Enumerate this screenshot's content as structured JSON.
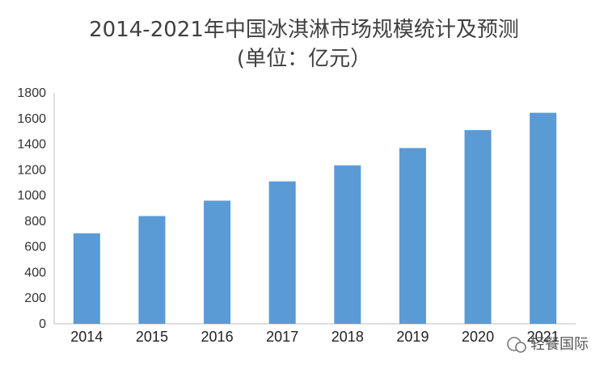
{
  "chart_data": {
    "type": "bar",
    "title_line1": "2014-2021年中国冰淇淋市场规模统计及预测",
    "title_line2": "(单位：亿元）",
    "categories": [
      "2014",
      "2015",
      "2016",
      "2017",
      "2018",
      "2019",
      "2020",
      "2021"
    ],
    "values": [
      705,
      840,
      960,
      1110,
      1235,
      1370,
      1510,
      1645
    ],
    "ylim": [
      0,
      1800
    ],
    "yticks": [
      0,
      200,
      400,
      600,
      800,
      1000,
      1200,
      1400,
      1600,
      1800
    ],
    "grid": false,
    "bar_color": "#5B9BD5"
  },
  "watermark": {
    "text": "轻餐国际",
    "icon": "wechat-icon"
  }
}
